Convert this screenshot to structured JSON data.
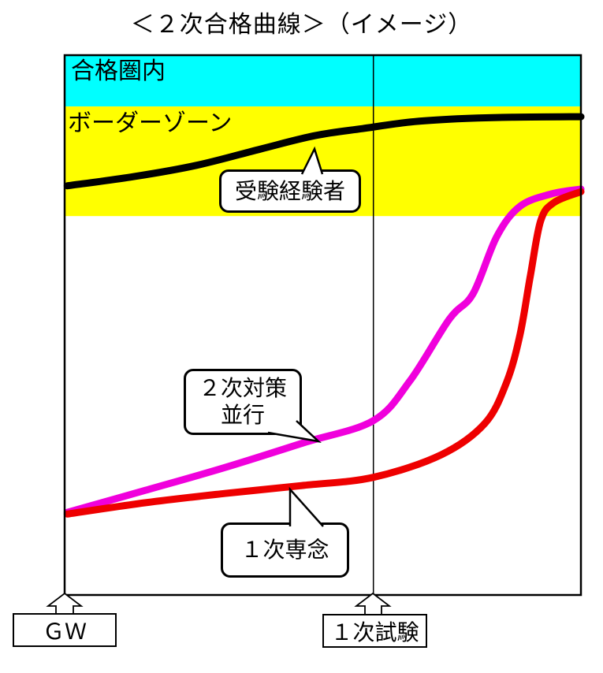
{
  "title": "＜２次合格曲線＞（イメージ）",
  "labels": {
    "zone_pass": "合格圏内",
    "zone_border": "ボーダーゾーン"
  },
  "callouts": {
    "experienced": "受験経験者",
    "parallel": "２次対策\n並行",
    "focus_first": "１次専念"
  },
  "axis_labels": {
    "gw": "ＧＷ",
    "first_exam": "１次試験"
  },
  "colors": {
    "pass_zone": "#00ffff",
    "border_zone": "#ffff00",
    "experienced_curve": "#000000",
    "parallel_curve": "#f000dc",
    "focus_curve": "#ee0000"
  },
  "chart_data": {
    "type": "line",
    "title": "＜２次合格曲線＞（イメージ）",
    "xlabel": "",
    "ylabel": "",
    "ylim": [
      0,
      100
    ],
    "grid": false,
    "legend_position": "callout-bubbles",
    "x_axis": {
      "markers": [
        {
          "label": "ＧＷ",
          "position": 0.0
        },
        {
          "label": "１次試験",
          "position": 0.598
        }
      ]
    },
    "zones": [
      {
        "label": "合格圏内",
        "color": "#00ffff",
        "from": 90.5,
        "to": 100
      },
      {
        "label": "ボーダーゾーン",
        "color": "#ffff00",
        "from": 70.2,
        "to": 90.5
      }
    ],
    "series": [
      {
        "name": "受験経験者",
        "color": "#000000",
        "points": [
          [
            0.005,
            75.8
          ],
          [
            0.134,
            77.5
          ],
          [
            0.256,
            79.6
          ],
          [
            0.379,
            82.6
          ],
          [
            0.485,
            85.1
          ],
          [
            0.577,
            86.4
          ],
          [
            0.669,
            87.6
          ],
          [
            0.76,
            88.2
          ],
          [
            0.867,
            88.5
          ],
          [
            1.0,
            88.6
          ]
        ]
      },
      {
        "name": "２次対策並行",
        "color": "#f000dc",
        "points": [
          [
            0.005,
            15.3
          ],
          [
            0.157,
            19.4
          ],
          [
            0.31,
            23.6
          ],
          [
            0.463,
            28.2
          ],
          [
            0.598,
            32.3
          ],
          [
            0.669,
            39.7
          ],
          [
            0.745,
            51.1
          ],
          [
            0.791,
            55.8
          ],
          [
            0.837,
            66.4
          ],
          [
            0.882,
            72.0
          ],
          [
            0.943,
            74.3
          ],
          [
            1.0,
            75.2
          ]
        ]
      },
      {
        "name": "１次専念",
        "color": "#ee0000",
        "points": [
          [
            0.005,
            15.0
          ],
          [
            0.157,
            17.1
          ],
          [
            0.31,
            18.8
          ],
          [
            0.463,
            20.3
          ],
          [
            0.598,
            21.8
          ],
          [
            0.73,
            26.0
          ],
          [
            0.814,
            31.8
          ],
          [
            0.856,
            39.4
          ],
          [
            0.882,
            48.2
          ],
          [
            0.902,
            59.1
          ],
          [
            0.922,
            69.3
          ],
          [
            0.948,
            72.7
          ],
          [
            1.0,
            74.7
          ]
        ]
      }
    ]
  }
}
